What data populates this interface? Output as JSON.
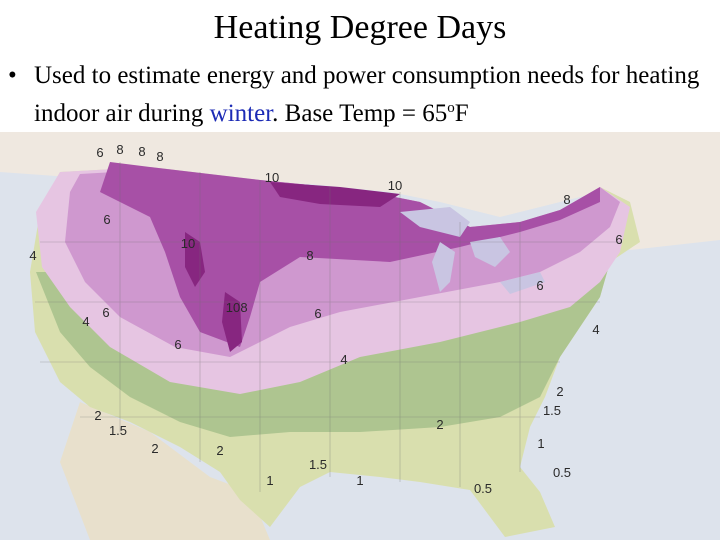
{
  "slide": {
    "title": "Heating Degree Days",
    "bullet": {
      "text_before": "Used to estimate energy and power consumption needs for heating indoor air during ",
      "highlight": "winter",
      "text_after": ". Base Temp = 65",
      "degree": "o",
      "unit": "F"
    }
  },
  "map": {
    "colors": {
      "ocean": "#dde3ec",
      "canada": "#efe8e0",
      "mexico": "#e8e0cc",
      "great_lakes": "#c9c5e2",
      "hdd_1": "#d9dfae",
      "hdd_2": "#aec590",
      "hdd_4": "#e6c5e2",
      "hdd_6": "#cf98cf",
      "hdd_8": "#a750a6",
      "hdd_10": "#872680"
    },
    "contour_labels": [
      {
        "id": "6-nw-1",
        "text": "6"
      },
      {
        "id": "8-nw-1",
        "text": "8"
      },
      {
        "id": "8-nw-2",
        "text": "8"
      },
      {
        "id": "8-nw-3",
        "text": "8"
      },
      {
        "id": "10-north",
        "text": "10"
      },
      {
        "id": "10-lakes",
        "text": "10"
      },
      {
        "id": "8-ne",
        "text": "8"
      },
      {
        "id": "6-ne",
        "text": "6"
      },
      {
        "id": "6-wa",
        "text": "6"
      },
      {
        "id": "4-west",
        "text": "4"
      },
      {
        "id": "10-rockies",
        "text": "10"
      },
      {
        "id": "8-plains",
        "text": "8"
      },
      {
        "id": "4-ca",
        "text": "4"
      },
      {
        "id": "6-nv",
        "text": "6"
      },
      {
        "id": "10-co",
        "text": "10"
      },
      {
        "id": "8-co",
        "text": "8"
      },
      {
        "id": "6-central",
        "text": "6"
      },
      {
        "id": "6-east",
        "text": "6"
      },
      {
        "id": "4-east",
        "text": "4"
      },
      {
        "id": "6-az",
        "text": "6"
      },
      {
        "id": "4-south",
        "text": "4"
      },
      {
        "id": "2-se",
        "text": "2"
      },
      {
        "id": "1.5-se",
        "text": "1.5"
      },
      {
        "id": "2-sw",
        "text": "2"
      },
      {
        "id": "1.5-sw",
        "text": "1.5"
      },
      {
        "id": "2-gulf",
        "text": "2"
      },
      {
        "id": "2-tx",
        "text": "2"
      },
      {
        "id": "2-sw2",
        "text": "2"
      },
      {
        "id": "1-ga",
        "text": "1"
      },
      {
        "id": "1.5-tx",
        "text": "1.5"
      },
      {
        "id": "0.5-fl",
        "text": "0.5"
      },
      {
        "id": "1-tx",
        "text": "1"
      },
      {
        "id": "1-gulf",
        "text": "1"
      },
      {
        "id": "0.5-gulf",
        "text": "0.5"
      }
    ]
  }
}
